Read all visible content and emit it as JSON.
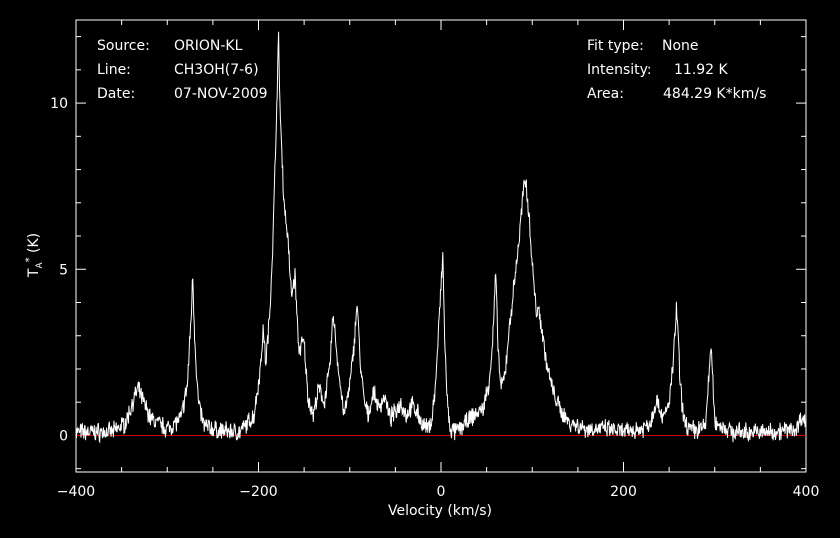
{
  "header": {
    "source_key": "Source:",
    "source_val": "ORION-KL",
    "line_key": "Line:",
    "line_val": "CH3OH(7-6)",
    "date_key": "Date:",
    "date_val": "07-NOV-2009",
    "fit_key": "Fit type:",
    "fit_val": "None",
    "intensity_key": "Intensity:",
    "intensity_val": "11.92 K",
    "area_key": "Area:",
    "area_val": "484.29 K*km/s"
  },
  "chart_data": {
    "type": "line",
    "xlabel": "Velocity (km/s)",
    "ylabel": "T_A* (K)",
    "xlim": [
      -400,
      400
    ],
    "ylim": [
      -1.1,
      12.5
    ],
    "xticks": [
      -400,
      -200,
      0,
      200,
      400
    ],
    "yticks": [
      0,
      5,
      10
    ],
    "baseline": 0,
    "colors": {
      "background": "#000000",
      "spectrum": "#ffffff",
      "baseline": "#d00000",
      "axes": "#ffffff"
    },
    "series": [
      {
        "x": [
          -400,
          -360,
          -345,
          -338,
          -332,
          -326,
          -318,
          -300,
          -285,
          -278,
          -274,
          -272,
          -270,
          -266,
          -260,
          -245,
          -220,
          -205,
          -198,
          -195,
          -192,
          -188,
          -184,
          -180,
          -178,
          -176,
          -172,
          -168,
          -164,
          -160,
          -156,
          -150,
          -146,
          -140,
          -134,
          -128,
          -122,
          -118,
          -114,
          -110,
          -106,
          -100,
          -96,
          -92,
          -88,
          -84,
          -80,
          -74,
          -68,
          -62,
          -56,
          -50,
          -44,
          -38,
          -32,
          -26,
          -20,
          -14,
          -10,
          -6,
          -2,
          2,
          4,
          6,
          8,
          10,
          12,
          16,
          24,
          36,
          46,
          52,
          56,
          60,
          62,
          64,
          66,
          70,
          74,
          80,
          86,
          90,
          93,
          96,
          100,
          104,
          108,
          112,
          116,
          122,
          130,
          140,
          160,
          180,
          200,
          220,
          230,
          236,
          240,
          244,
          250,
          254,
          258,
          260,
          262,
          266,
          272,
          280,
          290,
          293,
          296,
          300,
          320,
          360,
          390,
          395,
          400
        ],
        "y": [
          0.1,
          0.1,
          0.4,
          1.0,
          1.4,
          1.0,
          0.5,
          0.2,
          0.5,
          1.5,
          3.5,
          4.8,
          3.0,
          1.0,
          0.3,
          0.15,
          0.1,
          0.6,
          2.0,
          3.2,
          2.2,
          3.5,
          6.0,
          10.0,
          11.9,
          9.5,
          7.0,
          6.0,
          4.2,
          4.8,
          2.6,
          2.8,
          1.2,
          0.6,
          1.4,
          1.0,
          2.0,
          3.7,
          2.4,
          1.4,
          0.6,
          1.5,
          2.5,
          4.0,
          2.0,
          1.0,
          0.6,
          1.3,
          0.8,
          1.2,
          0.5,
          0.7,
          1.0,
          0.6,
          0.9,
          0.7,
          0.3,
          0.2,
          0.5,
          1.5,
          3.5,
          5.4,
          3.0,
          1.5,
          0.6,
          0.2,
          0.15,
          0.1,
          0.3,
          0.6,
          0.8,
          1.5,
          2.5,
          4.9,
          3.0,
          2.0,
          1.4,
          1.8,
          3.0,
          4.5,
          6.0,
          7.3,
          7.7,
          6.8,
          5.2,
          3.8,
          3.7,
          2.9,
          2.1,
          1.4,
          0.8,
          0.4,
          0.2,
          0.2,
          0.1,
          0.2,
          0.4,
          1.1,
          0.8,
          0.5,
          1.0,
          2.0,
          3.8,
          3.0,
          1.5,
          0.5,
          0.2,
          0.15,
          0.3,
          1.6,
          2.7,
          0.4,
          0.1,
          0.1,
          0.2,
          0.6,
          0.3
        ]
      }
    ]
  }
}
